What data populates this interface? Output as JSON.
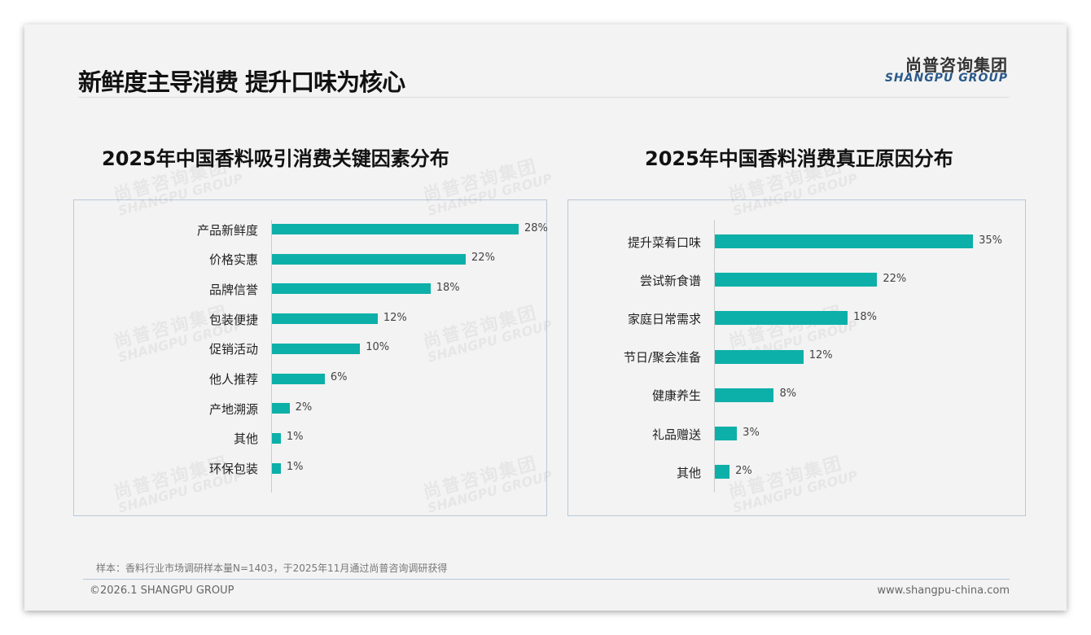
{
  "header": {
    "title": "新鲜度主导消费 提升口味为核心",
    "logo_cn": "尚普咨询集团",
    "logo_en": "SHANGPU GROUP"
  },
  "watermark": {
    "cn": "尚普咨询集团",
    "en": "SHANGPU GROUP"
  },
  "chart_data": [
    {
      "type": "bar",
      "orientation": "horizontal",
      "title": "2025年中国香料吸引消费关键因素分布",
      "categories": [
        "产品新鲜度",
        "价格实惠",
        "品牌信誉",
        "包装便捷",
        "促销活动",
        "他人推荐",
        "产地溯源",
        "其他",
        "环保包装"
      ],
      "values": [
        28,
        22,
        18,
        12,
        10,
        6,
        2,
        1,
        1
      ],
      "labels": [
        "28%",
        "22%",
        "18%",
        "12%",
        "10%",
        "6%",
        "2%",
        "1%",
        "1%"
      ],
      "unit": "%",
      "color": "#0db0a8"
    },
    {
      "type": "bar",
      "orientation": "horizontal",
      "title": "2025年中国香料消费真正原因分布",
      "categories": [
        "提升菜肴口味",
        "尝试新食谱",
        "家庭日常需求",
        "节日/聚会准备",
        "健康养生",
        "礼品赠送",
        "其他"
      ],
      "values": [
        35,
        22,
        18,
        12,
        8,
        3,
        2
      ],
      "labels": [
        "35%",
        "22%",
        "18%",
        "12%",
        "8%",
        "3%",
        "2%"
      ],
      "unit": "%",
      "color": "#0db0a8"
    }
  ],
  "footer": {
    "note": "样本：香料行业市场调研样本量N=1403，于2025年11月通过尚普咨询调研获得",
    "copyright": "©2026.1 SHANGPU GROUP",
    "url": "www.shangpu-china.com"
  }
}
